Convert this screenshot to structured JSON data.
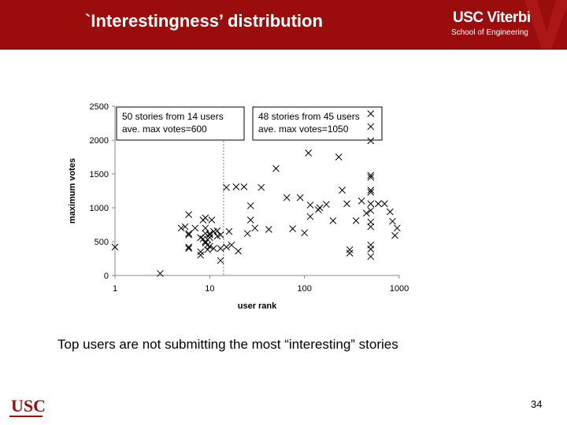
{
  "slide": {
    "title": "`Interestingness’ distribution",
    "logo_main": "USC Viterbi",
    "logo_sub": "School of Engineering",
    "caption": "Top users are not submitting the most “interesting” stories",
    "bottom_logo": "USC",
    "page_number": "34"
  },
  "colors": {
    "header": "#9b0d0d",
    "marker": "#000000",
    "divider": "#808080"
  },
  "chart_data": {
    "type": "scatter",
    "x_scale": "log",
    "xlim": [
      1,
      1000
    ],
    "ylim": [
      0,
      2500
    ],
    "xticks": [
      "1",
      "10",
      "100",
      "1000"
    ],
    "yticks": [
      "0",
      "500",
      "1000",
      "1500",
      "2000",
      "2500"
    ],
    "xlabel": "user rank",
    "ylabel": "maximum votes",
    "grid": false,
    "marker": "x",
    "divider_x": 14,
    "annotations": [
      {
        "lines": [
          "50 stories from 14 users",
          "ave. max votes=600"
        ],
        "position": "top-left"
      },
      {
        "lines": [
          "48 stories from 45 users",
          "ave. max votes=1050"
        ],
        "position": "top-right"
      }
    ],
    "points": [
      [
        1,
        420
      ],
      [
        3,
        30
      ],
      [
        5,
        700
      ],
      [
        5.5,
        720
      ],
      [
        6,
        900
      ],
      [
        6,
        600
      ],
      [
        6,
        620
      ],
      [
        6,
        400
      ],
      [
        6,
        420
      ],
      [
        7,
        700
      ],
      [
        8,
        560
      ],
      [
        8,
        300
      ],
      [
        8,
        350
      ],
      [
        8.5,
        820
      ],
      [
        8.5,
        540
      ],
      [
        9,
        850
      ],
      [
        9,
        620
      ],
      [
        9,
        700
      ],
      [
        9,
        500
      ],
      [
        9,
        480
      ],
      [
        9.5,
        530
      ],
      [
        9.5,
        450
      ],
      [
        9.5,
        380
      ],
      [
        10,
        600
      ],
      [
        10,
        560
      ],
      [
        10,
        620
      ],
      [
        10,
        430
      ],
      [
        10.5,
        820
      ],
      [
        11,
        650
      ],
      [
        11,
        400
      ],
      [
        12,
        580
      ],
      [
        12,
        660
      ],
      [
        13,
        220
      ],
      [
        13,
        400
      ],
      [
        13,
        600
      ],
      [
        15,
        1300
      ],
      [
        15,
        420
      ],
      [
        16,
        650
      ],
      [
        17,
        450
      ],
      [
        19,
        1310
      ],
      [
        20,
        360
      ],
      [
        23,
        1310
      ],
      [
        25,
        620
      ],
      [
        27,
        1030
      ],
      [
        27,
        820
      ],
      [
        30,
        700
      ],
      [
        35,
        1300
      ],
      [
        42,
        680
      ],
      [
        50,
        1580
      ],
      [
        65,
        1150
      ],
      [
        75,
        690
      ],
      [
        90,
        1150
      ],
      [
        100,
        630
      ],
      [
        110,
        1810
      ],
      [
        115,
        1040
      ],
      [
        115,
        870
      ],
      [
        140,
        970
      ],
      [
        145,
        1000
      ],
      [
        170,
        1050
      ],
      [
        200,
        810
      ],
      [
        230,
        1750
      ],
      [
        250,
        1260
      ],
      [
        280,
        1060
      ],
      [
        300,
        380
      ],
      [
        300,
        330
      ],
      [
        350,
        810
      ],
      [
        400,
        1100
      ],
      [
        450,
        920
      ],
      [
        500,
        2390
      ],
      [
        500,
        2200
      ],
      [
        500,
        1990
      ],
      [
        500,
        1480
      ],
      [
        500,
        1450
      ],
      [
        500,
        1260
      ],
      [
        500,
        1230
      ],
      [
        500,
        1060
      ],
      [
        500,
        960
      ],
      [
        500,
        790
      ],
      [
        500,
        720
      ],
      [
        500,
        450
      ],
      [
        500,
        390
      ],
      [
        500,
        280
      ],
      [
        600,
        1060
      ],
      [
        700,
        1060
      ],
      [
        800,
        940
      ],
      [
        850,
        800
      ],
      [
        900,
        590
      ],
      [
        950,
        700
      ]
    ]
  }
}
